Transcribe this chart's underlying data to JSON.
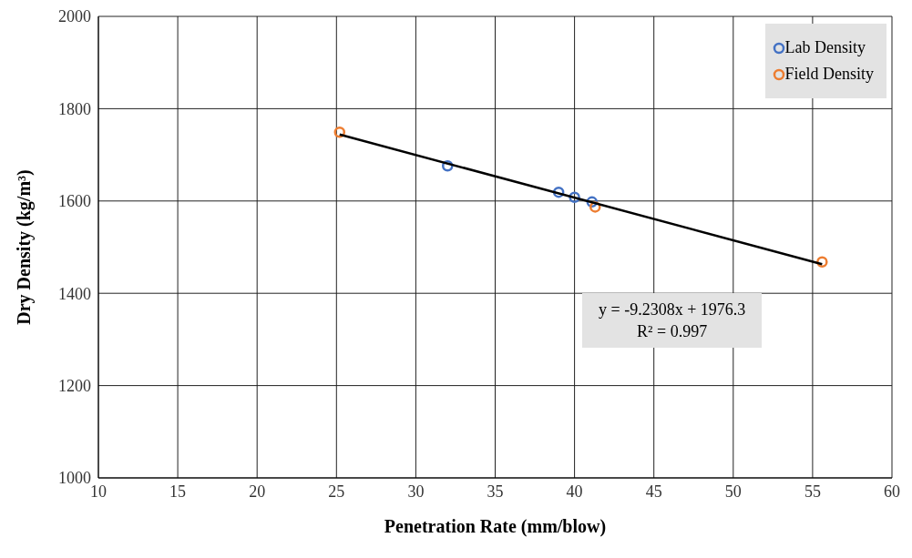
{
  "chart_data": {
    "type": "scatter",
    "xlabel": "Penetration Rate (mm/blow)",
    "ylabel": "Dry Density (kg/m³)",
    "xlim": [
      10,
      60
    ],
    "xticks": [
      10,
      15,
      20,
      25,
      30,
      35,
      40,
      45,
      50,
      55,
      60
    ],
    "ylim": [
      1000,
      2000
    ],
    "yticks": [
      1000,
      1200,
      1400,
      1600,
      1800,
      2000
    ],
    "grid": true,
    "legend": "top right",
    "series": [
      {
        "name": "Lab Density",
        "color": "#4472c4",
        "marker": "circle",
        "x": [
          32.0,
          39.0,
          40.0,
          41.1
        ],
        "values": [
          1676,
          1619,
          1608,
          1598
        ]
      },
      {
        "name": "Field Density",
        "color": "#ed7d31",
        "marker": "circle",
        "x": [
          25.2,
          41.3,
          55.6
        ],
        "values": [
          1749,
          1587,
          1468
        ]
      },
      {
        "type": "line",
        "color": "#000000",
        "x": [
          25.2,
          55.6
        ],
        "values": [
          1744,
          1463
        ]
      }
    ],
    "annotations": [
      "y = -9.2308x + 1976.3",
      "R² = 0.997"
    ]
  }
}
